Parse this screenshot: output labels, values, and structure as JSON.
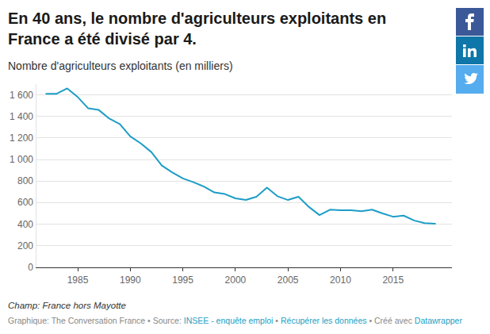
{
  "chart_data": {
    "type": "line",
    "title": "En 40 ans, le nombre d'agriculteurs exploitants en France a été divisé par 4.",
    "subtitle": "Nombre d'agriculteurs exploitants (en milliers)",
    "note": "Champ: France hors Mayotte",
    "source": [
      "Graphique: The Conversation France • Source: ",
      "INSEE - enquête emploi",
      " • ",
      "Récupérer les données",
      " • Créé avec ",
      "Datawrapper"
    ],
    "x": [
      1982,
      1983,
      1984,
      1985,
      1986,
      1987,
      1988,
      1989,
      1990,
      1991,
      1992,
      1993,
      1994,
      1995,
      1996,
      1997,
      1998,
      1999,
      2000,
      2001,
      2002,
      2003,
      2004,
      2005,
      2006,
      2007,
      2008,
      2009,
      2010,
      2011,
      2012,
      2013,
      2014,
      2015,
      2016,
      2017,
      2018,
      2019
    ],
    "values": [
      1610,
      1610,
      1660,
      1580,
      1475,
      1460,
      1380,
      1330,
      1215,
      1150,
      1070,
      945,
      880,
      825,
      790,
      750,
      695,
      680,
      640,
      625,
      655,
      740,
      660,
      625,
      655,
      560,
      485,
      535,
      530,
      530,
      520,
      535,
      500,
      470,
      480,
      435,
      410,
      405
    ],
    "color": "#1d9dc6",
    "xlim": [
      1981,
      2020.6
    ],
    "xticks": [
      1985,
      1990,
      1995,
      2000,
      2005,
      2010,
      2015
    ],
    "ylim": [
      0,
      1700
    ],
    "yticks": [
      0,
      200,
      400,
      600,
      800,
      {
        "value": 1000,
        "label": "1 000"
      },
      {
        "value": 1200,
        "label": "1 200"
      },
      {
        "value": 1400,
        "label": "1 400"
      },
      {
        "value": 1600,
        "label": "1 600"
      }
    ],
    "grid": true
  }
}
